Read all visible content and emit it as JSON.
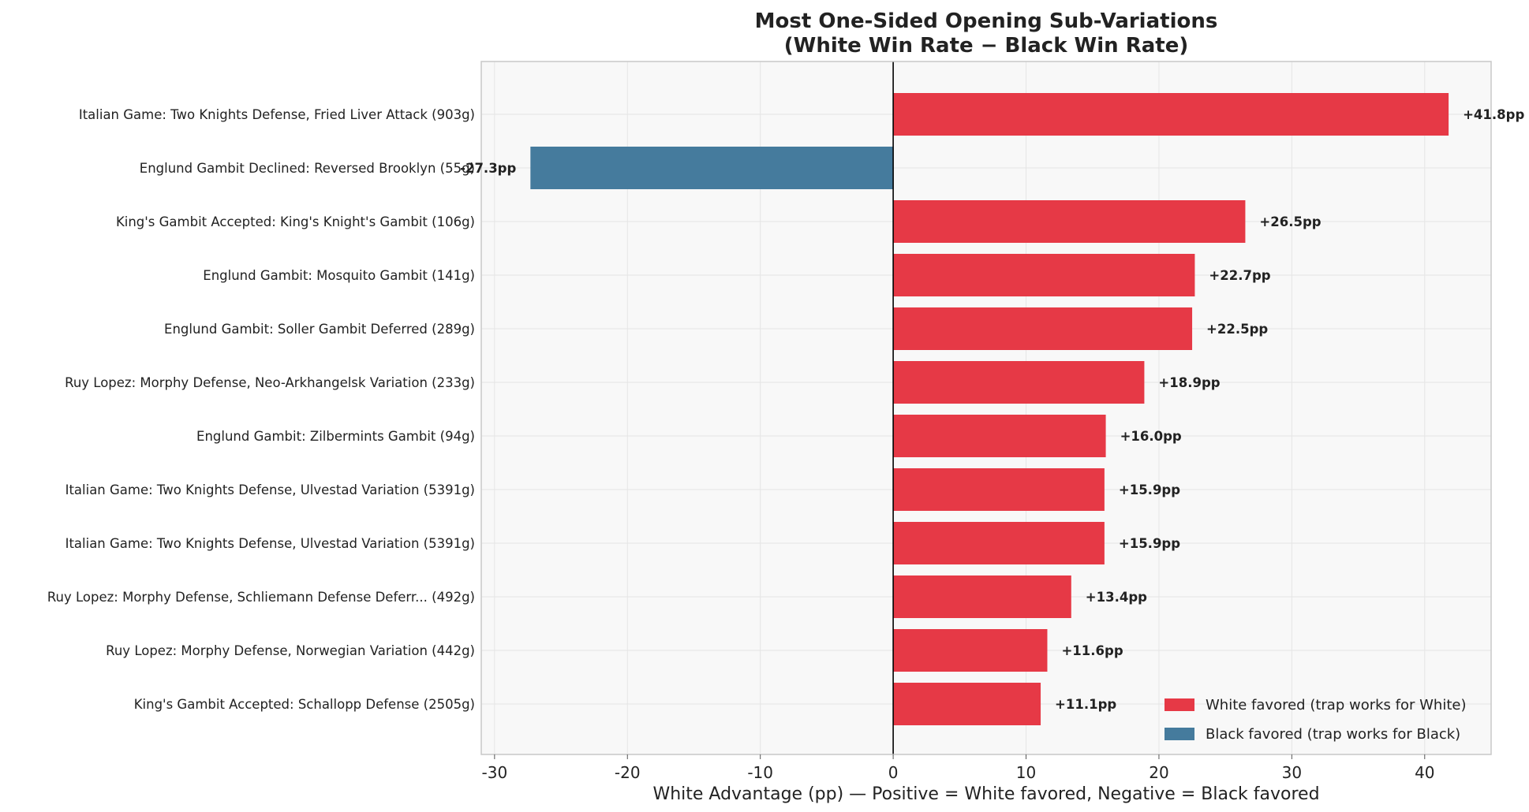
{
  "chart_data": {
    "type": "bar",
    "orientation": "horizontal",
    "title": "Most One-Sided Opening Sub-Variations",
    "subtitle": "(White Win Rate − Black Win Rate)",
    "xlabel": "White Advantage (pp) — Positive = White favored, Negative = Black favored",
    "ylabel": "",
    "xlim": [
      -31,
      45
    ],
    "xticks": [
      -30,
      -20,
      -10,
      0,
      10,
      20,
      30,
      40
    ],
    "grid": true,
    "legend_position": "bottom-right",
    "colors": {
      "white": "#e63946",
      "black": "#457b9d",
      "plot_bg": "#f8f8f8",
      "zero_line": "#000000"
    },
    "legend": [
      {
        "key": "white",
        "label": "White favored (trap works for White)"
      },
      {
        "key": "black",
        "label": "Black favored (trap works for Black)"
      }
    ],
    "categories": [
      "Italian Game: Two Knights Defense, Fried Liver Attack (903g)",
      "Englund Gambit Declined: Reversed Brooklyn (55g)",
      "King's Gambit Accepted: King's Knight's Gambit (106g)",
      "Englund Gambit: Mosquito Gambit (141g)",
      "Englund Gambit: Soller Gambit Deferred (289g)",
      "Ruy Lopez: Morphy Defense, Neo-Arkhangelsk Variation (233g)",
      "Englund Gambit: Zilbermints Gambit (94g)",
      "Italian Game: Two Knights Defense, Ulvestad Variation (5391g)",
      "Italian Game: Two Knights Defense, Ulvestad Variation (5391g)",
      "Ruy Lopez: Morphy Defense, Schliemann Defense Deferr... (492g)",
      "Ruy Lopez: Morphy Defense, Norwegian Variation (442g)",
      "King's Gambit Accepted: Schallopp Defense (2505g)"
    ],
    "values": [
      41.8,
      -27.3,
      26.5,
      22.7,
      22.5,
      18.9,
      16.0,
      15.9,
      15.9,
      13.4,
      11.6,
      11.1
    ],
    "data_labels": [
      "+41.8pp",
      "-27.3pp",
      "+26.5pp",
      "+22.7pp",
      "+22.5pp",
      "+18.9pp",
      "+16.0pp",
      "+15.9pp",
      "+15.9pp",
      "+13.4pp",
      "+11.6pp",
      "+11.1pp"
    ]
  }
}
